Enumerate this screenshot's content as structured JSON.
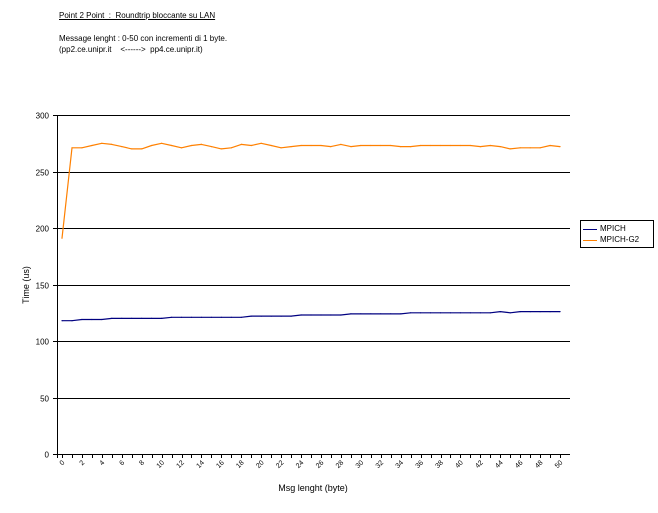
{
  "header": {
    "title": "Point 2 Point  :  Roundtrip bloccante su LAN",
    "line1": "Message lenght : 0-50 con incrementi di 1 byte.",
    "line2": "(pp2.ce.unipr.it    <------>  pp4.ce.unipr.it)"
  },
  "chart_data": {
    "type": "line",
    "title": "Point 2 Point  :  Roundtrip bloccante su LAN",
    "xlabel": "Msg lenght (byte)",
    "ylabel": "Time (us)",
    "xlim": [
      0,
      51
    ],
    "ylim": [
      0,
      300
    ],
    "yticks": [
      0,
      50,
      100,
      150,
      200,
      250,
      300
    ],
    "xticks": [
      0,
      2,
      4,
      6,
      8,
      10,
      12,
      14,
      16,
      18,
      20,
      22,
      24,
      26,
      28,
      30,
      32,
      34,
      36,
      38,
      40,
      42,
      44,
      46,
      48,
      50
    ],
    "grid": "horizontal",
    "legend_position": "right",
    "x": [
      0,
      1,
      2,
      3,
      4,
      5,
      6,
      7,
      8,
      9,
      10,
      11,
      12,
      13,
      14,
      15,
      16,
      17,
      18,
      19,
      20,
      21,
      22,
      23,
      24,
      25,
      26,
      27,
      28,
      29,
      30,
      31,
      32,
      33,
      34,
      35,
      36,
      37,
      38,
      39,
      40,
      41,
      42,
      43,
      44,
      45,
      46,
      47,
      48,
      49,
      50
    ],
    "series": [
      {
        "name": "MPICH",
        "color": "#000080",
        "values": [
          118,
          118,
          119,
          119,
          119,
          120,
          120,
          120,
          120,
          120,
          120,
          121,
          121,
          121,
          121,
          121,
          121,
          121,
          121,
          122,
          122,
          122,
          122,
          122,
          123,
          123,
          123,
          123,
          123,
          124,
          124,
          124,
          124,
          124,
          124,
          125,
          125,
          125,
          125,
          125,
          125,
          125,
          125,
          125,
          126,
          125,
          126,
          126,
          126,
          126,
          126
        ]
      },
      {
        "name": "MPICH-G2",
        "color": "#FF8000",
        "values": [
          191,
          271,
          271,
          273,
          275,
          274,
          272,
          270,
          270,
          273,
          275,
          273,
          271,
          273,
          274,
          272,
          270,
          271,
          274,
          273,
          275,
          273,
          271,
          272,
          273,
          273,
          273,
          272,
          274,
          272,
          273,
          273,
          273,
          273,
          272,
          272,
          273,
          273,
          273,
          273,
          273,
          273,
          272,
          273,
          272,
          270,
          271,
          271,
          271,
          273,
          272
        ]
      }
    ]
  }
}
